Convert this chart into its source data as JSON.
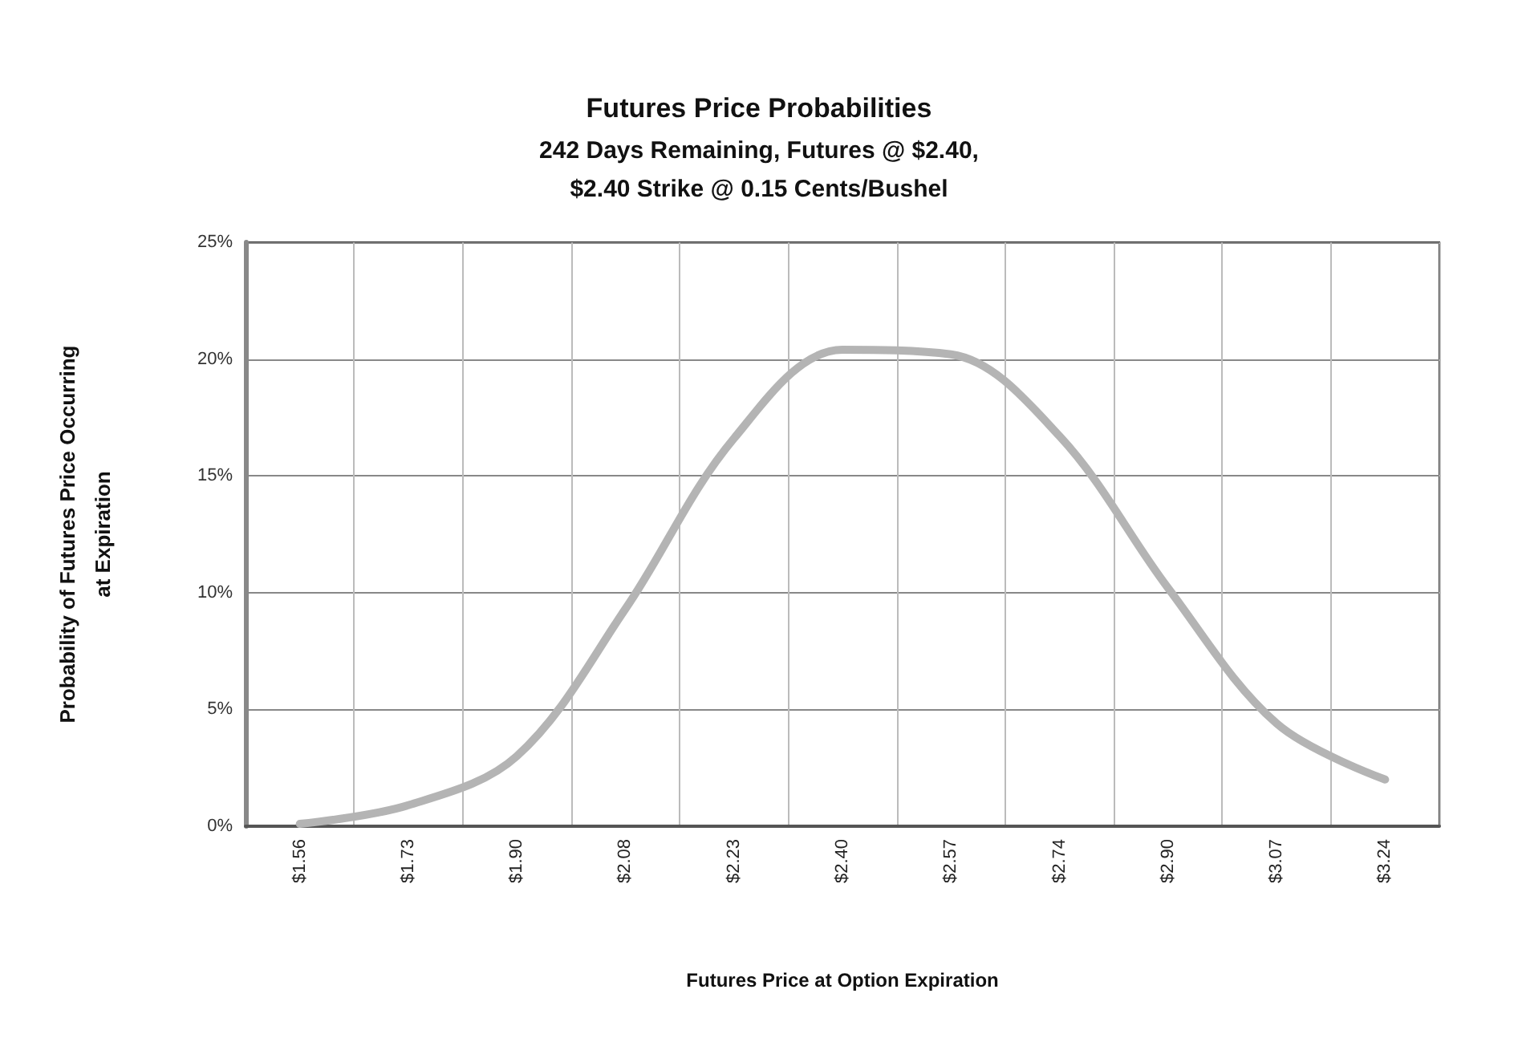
{
  "chart_data": {
    "type": "line",
    "title": "Futures Price Probabilities",
    "subtitle": "242 Days Remaining, Futures @ $2.40,\n$2.40 Strike @ 0.15 Cents/Bushel",
    "xlabel": "Futures Price at Option Expiration",
    "ylabel": "Probability of Futures Price Occurring\nat Expiration",
    "categories": [
      "$1.56",
      "$1.73",
      "$1.90",
      "$2.08",
      "$2.23",
      "$2.40",
      "$2.57",
      "$2.74",
      "$2.90",
      "$3.07",
      "$3.24"
    ],
    "series": [
      {
        "color": "#b4b4b4",
        "values": [
          0.1,
          0.9,
          3.0,
          9.3,
          16.6,
          20.4,
          20.2,
          16.7,
          10.2,
          4.4,
          2.0
        ]
      }
    ],
    "ylim": [
      0,
      25
    ],
    "yticks": [
      {
        "value": 0,
        "label": "0%"
      },
      {
        "value": 5,
        "label": "5%"
      },
      {
        "value": 10,
        "label": "10%"
      },
      {
        "value": 15,
        "label": "15%"
      },
      {
        "value": 20,
        "label": "20%"
      },
      {
        "value": 25,
        "label": "25%"
      }
    ],
    "grid": true,
    "marker": "none",
    "line_style": "solid"
  }
}
